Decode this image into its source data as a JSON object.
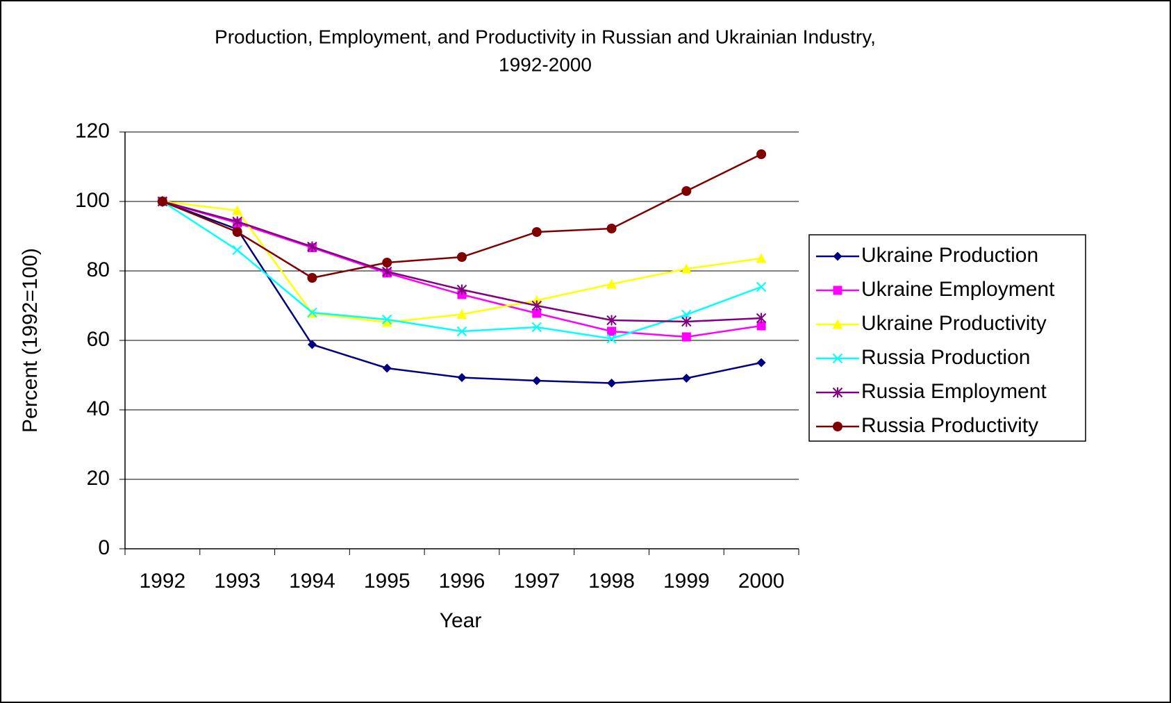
{
  "chart_data": {
    "type": "line",
    "title": [
      "Production, Employment, and Productivity in Russian and Ukrainian Industry,",
      "1992-2000"
    ],
    "x_label": "Year",
    "y_label": "Percent (1992=100)",
    "categories": [
      "1992",
      "1993",
      "1994",
      "1995",
      "1996",
      "1997",
      "1998",
      "1999",
      "2000"
    ],
    "ylim": [
      0,
      120
    ],
    "yticks": [
      0,
      20,
      40,
      60,
      80,
      100,
      120
    ],
    "grid": true,
    "legend": "right",
    "series": [
      {
        "name": "Ukraine Production",
        "color": "#000080",
        "marker": "diamond",
        "values": [
          100,
          92,
          58.8,
          52,
          49.3,
          48.4,
          47.7,
          49.1,
          53.6
        ]
      },
      {
        "name": "Ukraine Employment",
        "color": "#ff00ff",
        "marker": "square",
        "values": [
          100,
          93.8,
          86.7,
          79.4,
          73.2,
          67.8,
          62.6,
          61,
          64.2
        ]
      },
      {
        "name": "Ukraine Productivity",
        "color": "#ffff00",
        "marker": "triangle",
        "values": [
          100,
          97.4,
          67.8,
          65.2,
          67.5,
          71.5,
          76.2,
          80.6,
          83.6
        ]
      },
      {
        "name": "Russia Production",
        "color": "#00ffff",
        "marker": "x",
        "values": [
          100,
          86,
          68,
          66,
          62.6,
          63.8,
          60.5,
          67.4,
          75.4
        ]
      },
      {
        "name": "Russia Employment",
        "color": "#800080",
        "marker": "asterisk",
        "values": [
          100,
          94.2,
          87,
          79.8,
          74.6,
          70,
          65.8,
          65.4,
          66.4
        ]
      },
      {
        "name": "Russia Productivity",
        "color": "#800000",
        "marker": "circle",
        "values": [
          100,
          91.2,
          78,
          82.4,
          84,
          91.2,
          92.2,
          103,
          113.6
        ]
      }
    ]
  }
}
